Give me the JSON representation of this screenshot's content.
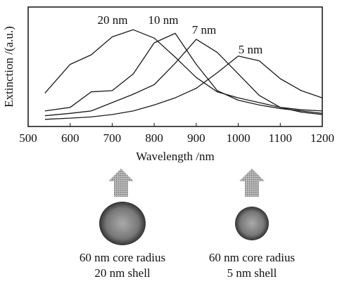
{
  "chart_data": {
    "type": "line",
    "x_label": "Wavelength /nm",
    "y_label": "Extinction /(a.u.)",
    "x": [
      540,
      600,
      650,
      700,
      750,
      800,
      850,
      900,
      950,
      1000,
      1050,
      1100,
      1150,
      1200
    ],
    "series": [
      {
        "name": "20 nm",
        "color": "#1a1a1a",
        "values": [
          0.28,
          0.52,
          0.6,
          0.75,
          0.81,
          0.74,
          0.58,
          0.41,
          0.29,
          0.24,
          0.2,
          0.16,
          0.14,
          0.13
        ]
      },
      {
        "name": "10 nm",
        "color": "#1a1a1a",
        "values": [
          0.13,
          0.16,
          0.29,
          0.3,
          0.44,
          0.7,
          0.78,
          0.52,
          0.3,
          0.22,
          0.18,
          0.15,
          0.13,
          0.11
        ]
      },
      {
        "name": "7 nm",
        "color": "#1a1a1a",
        "values": [
          0.09,
          0.11,
          0.13,
          0.2,
          0.27,
          0.35,
          0.53,
          0.73,
          0.62,
          0.44,
          0.26,
          0.16,
          0.12,
          0.1
        ]
      },
      {
        "name": "5 nm",
        "color": "#1a1a1a",
        "values": [
          0.06,
          0.07,
          0.08,
          0.1,
          0.13,
          0.18,
          0.24,
          0.32,
          0.45,
          0.59,
          0.55,
          0.4,
          0.3,
          0.24
        ]
      }
    ],
    "xlim": [
      500,
      1200
    ],
    "xticks": [
      500,
      600,
      700,
      800,
      900,
      1000,
      1100,
      1200
    ],
    "ylim": [
      0,
      1
    ]
  },
  "particles": [
    {
      "core": "60 nm core radius",
      "shell": "20 nm shell"
    },
    {
      "core": "60 nm core radius",
      "shell": "5 nm shell"
    }
  ]
}
